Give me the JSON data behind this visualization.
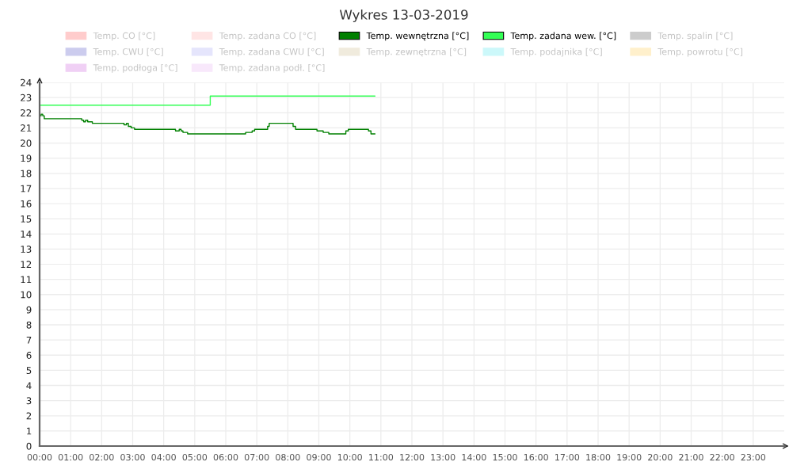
{
  "chart_data": {
    "type": "step",
    "title": "Wykres 13-03-2019",
    "series": [
      {
        "name": "Temp. CO [°C]",
        "color": "#ffcccc"
      },
      {
        "name": "Temp. zadana CO [°C]",
        "color": "#ffe5e5"
      },
      {
        "name": "Temp. wewnętrzna [°C]",
        "color": "#008000",
        "x": [
          0,
          0.05,
          0.1,
          0.15,
          1.36,
          1.42,
          1.48,
          1.55,
          1.7,
          2.72,
          2.8,
          2.86,
          2.95,
          3.06,
          4.38,
          4.5,
          4.56,
          4.62,
          4.77,
          6.64,
          6.85,
          6.93,
          7.35,
          7.4,
          8.17,
          8.25,
          8.94,
          9.14,
          9.32,
          9.87,
          9.95,
          10.6,
          10.68,
          10.81
        ],
        "values": [
          21.8,
          21.9,
          21.8,
          21.6,
          21.5,
          21.4,
          21.5,
          21.4,
          21.3,
          21.2,
          21.3,
          21.1,
          21.0,
          20.9,
          20.8,
          20.9,
          20.8,
          20.7,
          20.6,
          20.7,
          20.8,
          20.9,
          21.1,
          21.3,
          21.1,
          20.9,
          20.8,
          20.7,
          20.6,
          20.8,
          20.9,
          20.8,
          20.6,
          20.6
        ]
      },
      {
        "name": "Temp. zadana wew. [°C]",
        "color": "#33ff55",
        "x": [
          0,
          5.5,
          10.81
        ],
        "values": [
          22.5,
          23.1,
          23.1
        ]
      },
      {
        "name": "Temp. spalin [°C]",
        "color": "#cccccc"
      },
      {
        "name": "Temp. CWU [°C]",
        "color": "#ccccee"
      },
      {
        "name": "Temp. zadana CWU [°C]",
        "color": "#e5e5fc"
      },
      {
        "name": "Temp. zewnętrzna [°C]",
        "color": "#f0ebdd"
      },
      {
        "name": "Temp. podajnika [°C]",
        "color": "#ccf8fa"
      },
      {
        "name": "Temp. powrotu [°C]",
        "color": "#fff0cc"
      },
      {
        "name": "Temp. podłoga [°C]",
        "color": "#f0d0f5"
      },
      {
        "name": "Temp. zadana podł. [°C]",
        "color": "#f8e8fb"
      }
    ],
    "xlim": [
      0,
      24
    ],
    "xticks": [
      {
        "value": 0,
        "label": "00:00"
      },
      {
        "value": 1,
        "label": "01:00"
      },
      {
        "value": 2,
        "label": "02:00"
      },
      {
        "value": 3,
        "label": "03:00"
      },
      {
        "value": 4,
        "label": "04:00"
      },
      {
        "value": 5,
        "label": "05:00"
      },
      {
        "value": 6,
        "label": "06:00"
      },
      {
        "value": 7,
        "label": "07:00"
      },
      {
        "value": 8,
        "label": "08:00"
      },
      {
        "value": 9,
        "label": "09:00"
      },
      {
        "value": 10,
        "label": "10:00"
      },
      {
        "value": 11,
        "label": "11:00"
      },
      {
        "value": 12,
        "label": "12:00"
      },
      {
        "value": 13,
        "label": "13:00"
      },
      {
        "value": 14,
        "label": "14:00"
      },
      {
        "value": 15,
        "label": "15:00"
      },
      {
        "value": 16,
        "label": "16:00"
      },
      {
        "value": 17,
        "label": "17:00"
      },
      {
        "value": 18,
        "label": "18:00"
      },
      {
        "value": 19,
        "label": "19:00"
      },
      {
        "value": 20,
        "label": "20:00"
      },
      {
        "value": 21,
        "label": "21:00"
      },
      {
        "value": 22,
        "label": "22:00"
      },
      {
        "value": 23,
        "label": "23:00"
      }
    ],
    "ylim": [
      0,
      24
    ],
    "yticks": [
      0,
      1,
      2,
      3,
      4,
      5,
      6,
      7,
      8,
      9,
      10,
      11,
      12,
      13,
      14,
      15,
      16,
      17,
      18,
      19,
      20,
      21,
      22,
      23,
      24
    ],
    "grid": true,
    "legend": "top",
    "line_style": "solid"
  }
}
